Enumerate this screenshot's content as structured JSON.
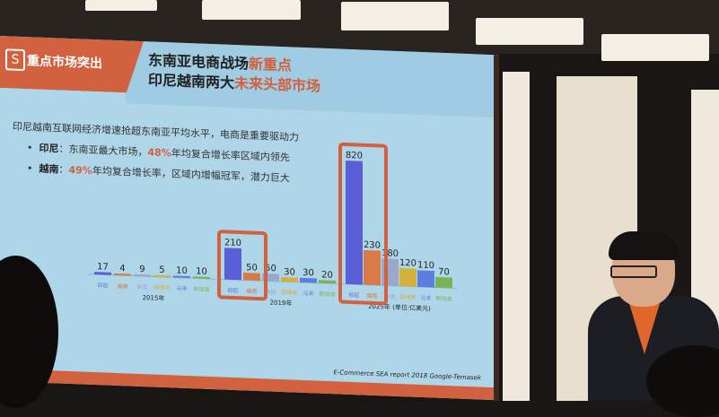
{
  "slide": {
    "section_title": "重点市场突出",
    "title_line1_a": "东南亚电商战场",
    "title_line1_b": "新重点",
    "title_line2_a": "印尼越南两大",
    "title_line2_b": "未来头部市场",
    "lead": "印尼越南互联网经济增速抢超东南亚平均水平，电商是重要驱动力",
    "bullets": [
      {
        "label": "印尼",
        "a": "：东南亚最大市场，",
        "pct": "48%",
        "b": "年均复合增长率区域内领先"
      },
      {
        "label": "越南",
        "a": "：",
        "pct": "49%",
        "b": "年均复合增长率，区域内增幅冠军，潜力巨大"
      }
    ],
    "source": "E-Commerce SEA report 2018 Google-Temasek",
    "accent_color": "#d2613f"
  },
  "chart_data": {
    "type": "bar",
    "categories": [
      "印尼",
      "越南",
      "泰国",
      "菲律宾",
      "马来",
      "新加坡"
    ],
    "category_colors": [
      "#5a5fd8",
      "#d87a45",
      "#9aa8cc",
      "#d4b13a",
      "#5a7fe0",
      "#7ab455"
    ],
    "groups": [
      {
        "label": "2015年",
        "values": [
          17,
          4,
          9,
          5,
          10,
          10
        ]
      },
      {
        "label": "2019年",
        "values": [
          210,
          50,
          50,
          30,
          30,
          20
        ]
      },
      {
        "label": "2025年 (单位:亿美元)",
        "values": [
          820,
          230,
          180,
          120,
          110,
          70
        ]
      }
    ],
    "highlighted": [
      "2019年: 印尼, 越南",
      "2025年: 印尼, 越南"
    ],
    "unit": "亿美元"
  }
}
